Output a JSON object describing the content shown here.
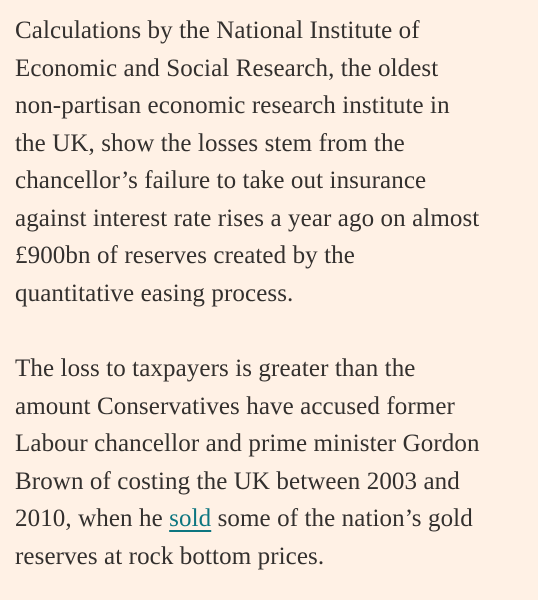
{
  "article": {
    "paragraph_1": {
      "lines": [
        "Calculations by the National Institute of",
        "Economic and Social Research, the oldest",
        "non-partisan economic research institute in",
        "the UK, show the losses stem from the",
        "chancellor’s failure to take out insurance",
        "against interest rate rises a year ago on almost",
        "£900bn of reserves created by the",
        "quantitative easing process."
      ]
    },
    "paragraph_2": {
      "lines": [
        "The loss to taxpayers is greater than the",
        "amount Conservatives have accused former",
        "Labour chancellor and prime minister Gordon",
        "Brown of costing the UK between 2003 and"
      ],
      "line_5_before": "2010, when he ",
      "link_text": "sold",
      "line_5_after": " some of the nation’s gold",
      "line_6": "reserves at rock bottom prices."
    },
    "colors": {
      "background": "#fff1e5",
      "text": "#33302e",
      "link": "#0d7680"
    }
  }
}
